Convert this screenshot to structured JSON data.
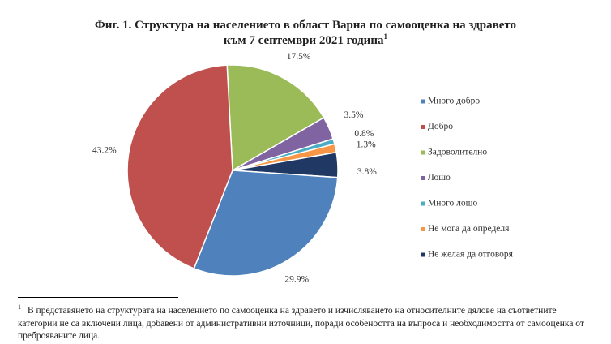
{
  "chart_data": {
    "type": "pie",
    "title_line1": "Фиг. 1. Структура на населението в област Варна по самооценка на здравето",
    "title_line2": "към 7 септември 2021 година",
    "title_note_marker": "1",
    "legend_position": "right",
    "slices": [
      {
        "name": "Много добро",
        "value": 29.9,
        "label": "29.9%",
        "color": "#4f81bd"
      },
      {
        "name": "Добро",
        "value": 43.2,
        "label": "43.2%",
        "color": "#c0504d"
      },
      {
        "name": "Задоволително",
        "value": 17.5,
        "label": "17.5%",
        "color": "#9bbb59"
      },
      {
        "name": "Лошо",
        "value": 3.5,
        "label": "3.5%",
        "color": "#8064a2"
      },
      {
        "name": "Много лошо",
        "value": 0.8,
        "label": "0.8%",
        "color": "#4bacc6"
      },
      {
        "name": "Не мога да определя",
        "value": 1.3,
        "label": "1.3%",
        "color": "#f79646"
      },
      {
        "name": "Не желая да отговоря",
        "value": 3.8,
        "label": "3.8%",
        "color": "#1f3864"
      }
    ]
  },
  "footnote": {
    "marker": "1",
    "text": "В представянето на структурата на населението по самооценка на здравето и изчисляването на относителните дялове на съответните категории не са включени лица, добавени от административни източници, поради особеността на въпроса и необходимостта от самооценка от преброяваните лица."
  }
}
